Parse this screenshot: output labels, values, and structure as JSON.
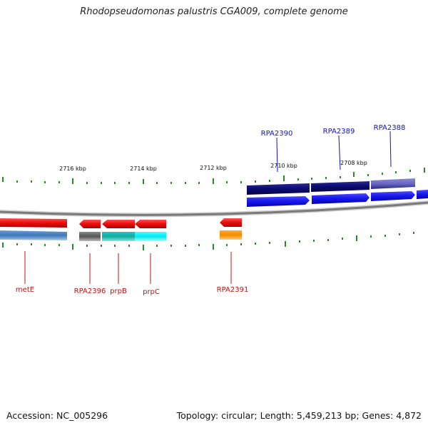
{
  "title": "Rhodopseudomonas palustris CGA009, complete genome",
  "footer": {
    "accession": "Accession: NC_005296",
    "summary": "Topology: circular; Length: 5,459,213 bp; Genes: 4,872"
  },
  "scale": {
    "ticks": [
      "2716 kbp",
      "2714 kbp",
      "2712 kbp",
      "2710 kbp",
      "2708 kbp"
    ]
  },
  "genes_top": [
    {
      "name": "RPA2390"
    },
    {
      "name": "RPA2389"
    },
    {
      "name": "RPA2388"
    }
  ],
  "genes_bottom": [
    {
      "name": "metE"
    },
    {
      "name": "RPA2396"
    },
    {
      "name": "prpB"
    },
    {
      "name": "prpC"
    },
    {
      "name": "RPA2391"
    }
  ],
  "colors": {
    "forward_cds": "#1a1aee",
    "forward_gene": "#0a0a70",
    "reverse_cds": "#ee1111",
    "backbone": "#8a8a8a",
    "tick": "#2a8a2a",
    "label_top": "#1010c8",
    "label_bottom": "#c81010"
  }
}
